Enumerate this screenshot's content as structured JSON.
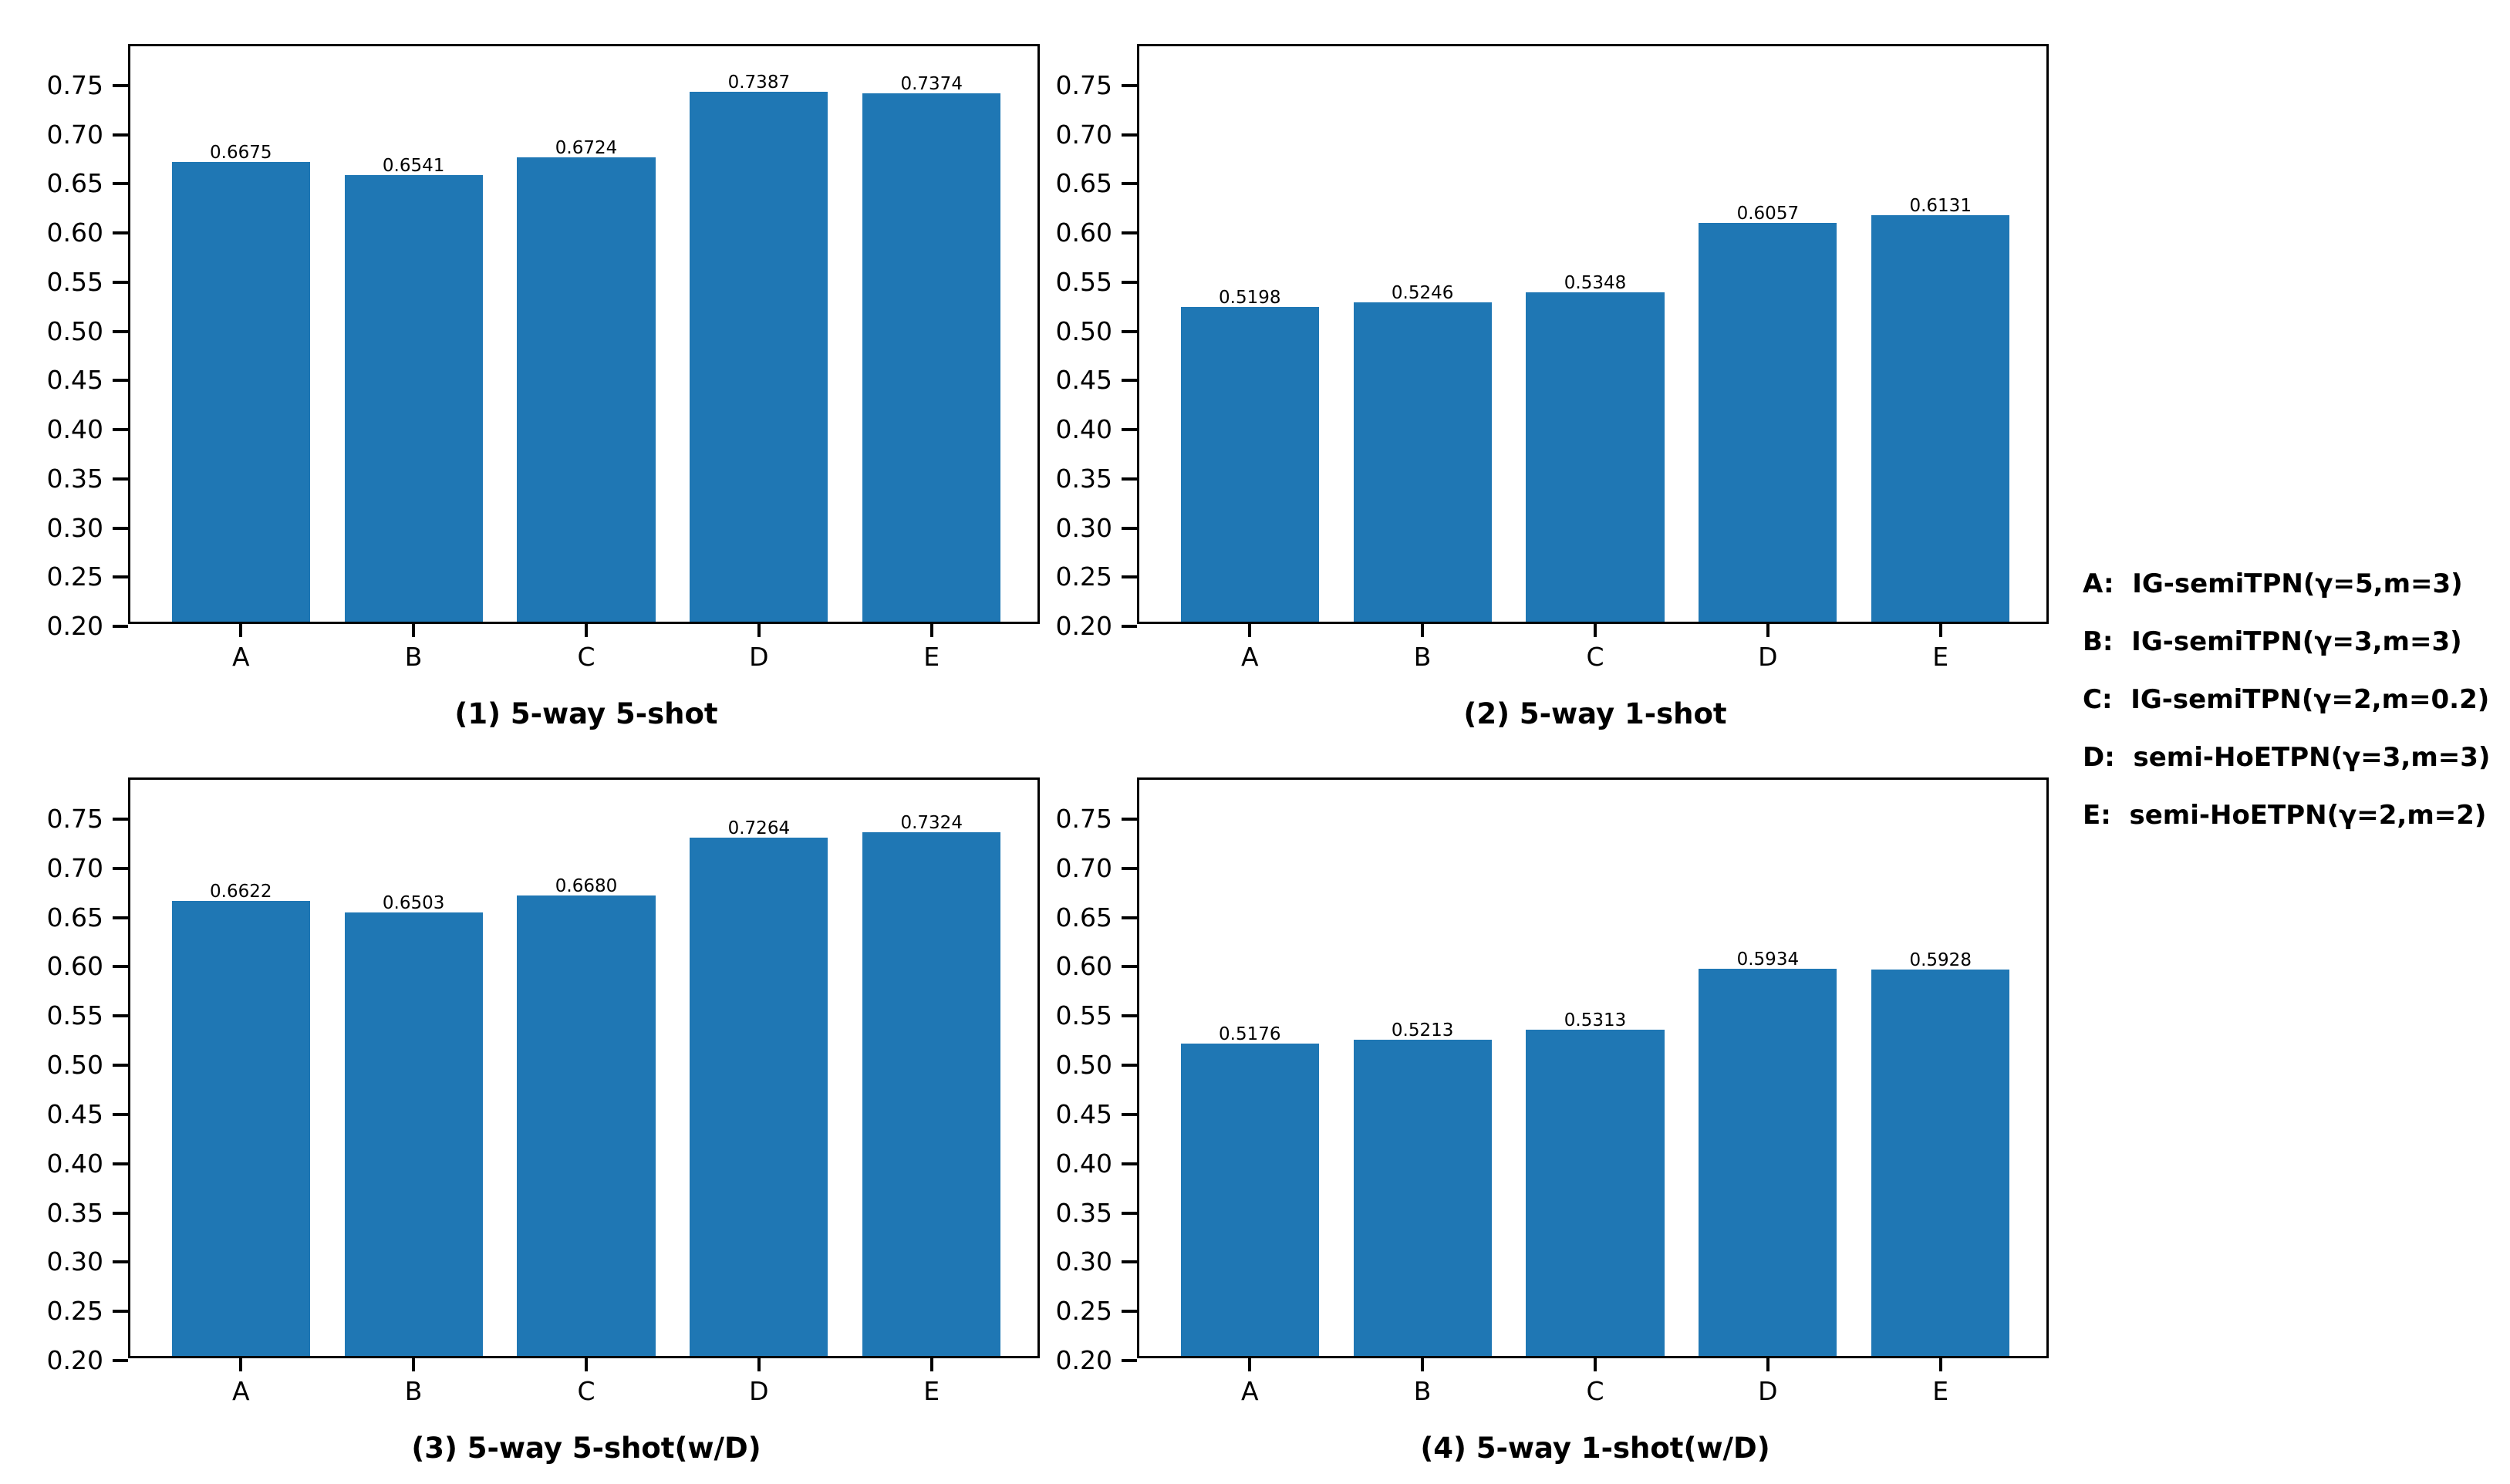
{
  "chart_data": [
    {
      "type": "bar",
      "title": "(1) 5-way 5-shot",
      "categories": [
        "A",
        "B",
        "C",
        "D",
        "E"
      ],
      "values": [
        0.6675,
        0.6541,
        0.6724,
        0.7387,
        0.7374
      ],
      "bar_labels": [
        "0.6675",
        "0.6541",
        "0.6724",
        "0.7387",
        "0.7374"
      ],
      "ylim": [
        0.2,
        0.79
      ],
      "yticks": [
        0.2,
        0.25,
        0.3,
        0.35,
        0.4,
        0.45,
        0.5,
        0.55,
        0.6,
        0.65,
        0.7,
        0.75
      ],
      "ytick_labels": [
        "0.20",
        "0.25",
        "0.30",
        "0.35",
        "0.40",
        "0.45",
        "0.50",
        "0.55",
        "0.60",
        "0.65",
        "0.70",
        "0.75"
      ],
      "xlabel": "",
      "ylabel": "",
      "grid": false
    },
    {
      "type": "bar",
      "title": "(2) 5-way 1-shot",
      "categories": [
        "A",
        "B",
        "C",
        "D",
        "E"
      ],
      "values": [
        0.5198,
        0.5246,
        0.5348,
        0.6057,
        0.6131
      ],
      "bar_labels": [
        "0.5198",
        "0.5246",
        "0.5348",
        "0.6057",
        "0.6131"
      ],
      "ylim": [
        0.2,
        0.79
      ],
      "yticks": [
        0.2,
        0.25,
        0.3,
        0.35,
        0.4,
        0.45,
        0.5,
        0.55,
        0.6,
        0.65,
        0.7,
        0.75
      ],
      "ytick_labels": [
        "0.20",
        "0.25",
        "0.30",
        "0.35",
        "0.40",
        "0.45",
        "0.50",
        "0.55",
        "0.60",
        "0.65",
        "0.70",
        "0.75"
      ],
      "xlabel": "",
      "ylabel": "",
      "grid": false
    },
    {
      "type": "bar",
      "title": "(3) 5-way 5-shot(w/D)",
      "categories": [
        "A",
        "B",
        "C",
        "D",
        "E"
      ],
      "values": [
        0.6622,
        0.6503,
        0.668,
        0.7264,
        0.7324
      ],
      "bar_labels": [
        "0.6622",
        "0.6503",
        "0.6680",
        "0.7264",
        "0.7324"
      ],
      "ylim": [
        0.2,
        0.79
      ],
      "yticks": [
        0.2,
        0.25,
        0.3,
        0.35,
        0.4,
        0.45,
        0.5,
        0.55,
        0.6,
        0.65,
        0.7,
        0.75
      ],
      "ytick_labels": [
        "0.20",
        "0.25",
        "0.30",
        "0.35",
        "0.40",
        "0.45",
        "0.50",
        "0.55",
        "0.60",
        "0.65",
        "0.70",
        "0.75"
      ],
      "xlabel": "",
      "ylabel": "",
      "grid": false
    },
    {
      "type": "bar",
      "title": "(4) 5-way 1-shot(w/D)",
      "categories": [
        "A",
        "B",
        "C",
        "D",
        "E"
      ],
      "values": [
        0.5176,
        0.5213,
        0.5313,
        0.5934,
        0.5928
      ],
      "bar_labels": [
        "0.5176",
        "0.5213",
        "0.5313",
        "0.5934",
        "0.5928"
      ],
      "ylim": [
        0.2,
        0.79
      ],
      "yticks": [
        0.2,
        0.25,
        0.3,
        0.35,
        0.4,
        0.45,
        0.5,
        0.55,
        0.6,
        0.65,
        0.7,
        0.75
      ],
      "ytick_labels": [
        "0.20",
        "0.25",
        "0.30",
        "0.35",
        "0.40",
        "0.45",
        "0.50",
        "0.55",
        "0.60",
        "0.65",
        "0.70",
        "0.75"
      ],
      "xlabel": "",
      "ylabel": "",
      "grid": false
    }
  ],
  "legend": {
    "position": "right",
    "items": [
      {
        "key": "A",
        "label": "IG-semiTPN(γ=5,m=3)",
        "text": "A:  IG-semiTPN(γ=5,m=3)"
      },
      {
        "key": "B",
        "label": "IG-semiTPN(γ=3,m=3)",
        "text": "B:  IG-semiTPN(γ=3,m=3)"
      },
      {
        "key": "C",
        "label": "IG-semiTPN(γ=2,m=0.2)",
        "text": "C:  IG-semiTPN(γ=2,m=0.2)"
      },
      {
        "key": "D",
        "label": "semi-HoETPN(γ=3,m=3)",
        "text": "D:  semi-HoETPN(γ=3,m=3)"
      },
      {
        "key": "E",
        "label": "semi-HoETPN(γ=2,m=2)",
        "text": "E:  semi-HoETPN(γ=2,m=2)"
      }
    ]
  },
  "style": {
    "bar_color": "#1f77b4",
    "axis_color": "#000000",
    "text_color": "#000000",
    "background_color": "#ffffff"
  }
}
